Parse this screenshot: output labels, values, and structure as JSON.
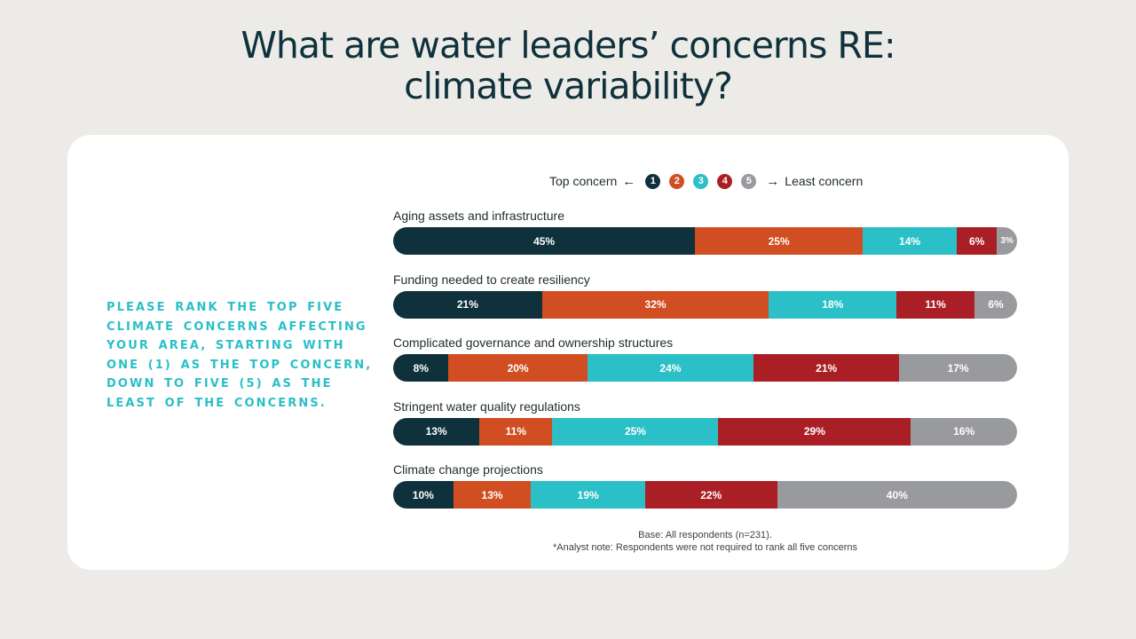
{
  "slide": {
    "title_line1": "What are water leaders’ concerns RE:",
    "title_line2": "climate variability?",
    "prompt": "Please rank the top five climate concerns affecting your area, starting with one (1) as the top concern, down to five (5) as the least of the concerns.",
    "footnote_base": "Base: All respondents (n=231).",
    "footnote_note": "*Analyst note: Respondents were not required to rank all five concerns"
  },
  "legend": {
    "left_label": "Top concern",
    "right_label": "Least concern",
    "left_arrow": "←",
    "right_arrow": "→"
  },
  "colors": {
    "rank1": "#0f313b",
    "rank2": "#d04e21",
    "rank3": "#2bbfc7",
    "rank4": "#a91f25",
    "rank5": "#999a9e"
  },
  "chart_data": {
    "type": "bar",
    "orientation": "horizontal",
    "stacked": true,
    "title": "",
    "xlabel": "",
    "ylabel": "",
    "categories": [
      "Aging assets and infrastructure",
      "Funding needed to create resiliency",
      "Complicated governance and ownership structures",
      "Stringent water quality regulations",
      "Climate change projections"
    ],
    "series": [
      {
        "name": "1",
        "values": [
          45,
          21,
          8,
          13,
          10
        ]
      },
      {
        "name": "2",
        "values": [
          25,
          32,
          20,
          11,
          13
        ]
      },
      {
        "name": "3",
        "values": [
          14,
          18,
          24,
          25,
          19
        ]
      },
      {
        "name": "4",
        "values": [
          6,
          11,
          21,
          29,
          22
        ]
      },
      {
        "name": "5",
        "values": [
          3,
          6,
          17,
          16,
          40
        ]
      }
    ],
    "value_suffix": "%",
    "legend_position": "top"
  }
}
